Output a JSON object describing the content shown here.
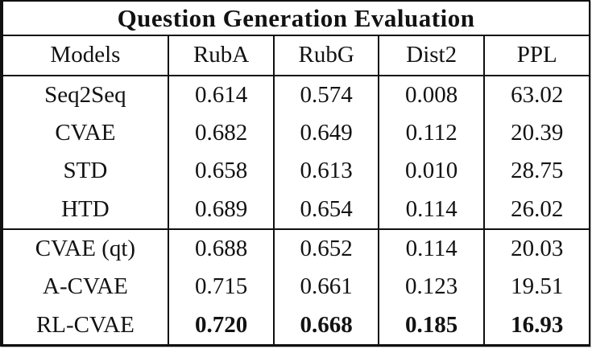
{
  "page": {
    "background": "#ffffff",
    "border_color": "#101010",
    "text_color": "#121212"
  },
  "chart_data": {
    "type": "table",
    "title": "Question Generation Evaluation",
    "columns": [
      "Models",
      "RubA",
      "RubG",
      "Dist2",
      "PPL"
    ],
    "rows": [
      {
        "cells": [
          "Seq2Seq",
          "0.614",
          "0.574",
          "0.008",
          "63.02"
        ]
      },
      {
        "cells": [
          "CVAE",
          "0.682",
          "0.649",
          "0.112",
          "20.39"
        ]
      },
      {
        "cells": [
          "STD",
          "0.658",
          "0.613",
          "0.010",
          "28.75"
        ]
      },
      {
        "cells": [
          "HTD",
          "0.689",
          "0.654",
          "0.114",
          "26.02"
        ]
      },
      {
        "cells": [
          "CVAE (qt)",
          "0.688",
          "0.652",
          "0.114",
          "20.03"
        ]
      },
      {
        "cells": [
          "A-CVAE",
          "0.715",
          "0.661",
          "0.123",
          "19.51"
        ]
      },
      {
        "cells": [
          "RL-CVAE",
          "0.720",
          "0.668",
          "0.185",
          "16.93"
        ]
      }
    ],
    "group_separator_after_row_index": 3,
    "bold_values_row_index": 6,
    "layout_hints": {
      "title_spans_all_columns": true,
      "vertical_rules_between_all_columns": true,
      "horizontal_rules": [
        "below-title",
        "below-header",
        "after-row-3",
        "bottom"
      ]
    }
  }
}
